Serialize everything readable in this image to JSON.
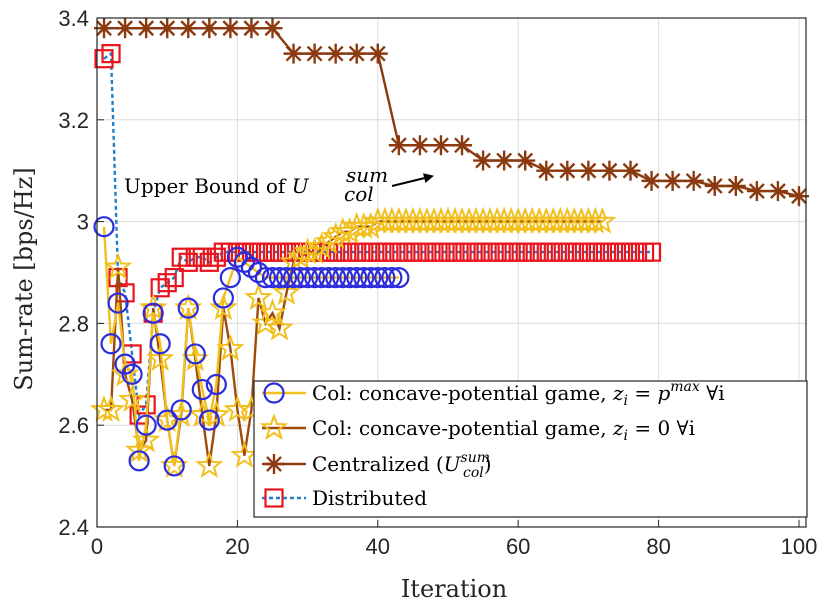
{
  "chart_data": {
    "type": "line",
    "title": "",
    "xlabel": "Iteration",
    "ylabel": "Sum-rate [bps/Hz]",
    "xlim": [
      0,
      101
    ],
    "ylim": [
      2.4,
      3.4
    ],
    "xticks": [
      0,
      20,
      40,
      60,
      80,
      100
    ],
    "yticks": [
      2.4,
      2.6,
      2.8,
      3.0,
      3.2,
      3.4
    ],
    "xtick_labels": [
      "0",
      "20",
      "40",
      "60",
      "80",
      "100"
    ],
    "ytick_labels": [
      "2.4",
      "2.6",
      "2.8",
      "3",
      "3.2",
      "3.4"
    ],
    "grid": true,
    "legend_position": "bottom-right",
    "annotation": {
      "text": "Upper Bound of ",
      "math_base": "U",
      "math_sup": "sum",
      "math_sub": "col",
      "arrow_to": [
        48,
        3.09
      ]
    },
    "series": [
      {
        "name": "Col: concave-potential game, z_i = p_i^max ∀i",
        "legend_parts": {
          "pre": "Col: concave-potential game, ",
          "z": "z",
          "i": "i",
          "eq": " = ",
          "p": "p",
          "sup": "max",
          "post": " ∀i"
        },
        "color": "#2c2cdc",
        "marker": "circle",
        "line_color": "#f2c01e",
        "x": [
          1,
          2,
          3,
          4,
          5,
          6,
          7,
          8,
          9,
          10,
          11,
          12,
          13,
          14,
          15,
          16,
          17,
          18,
          19,
          20,
          21,
          22,
          23,
          24,
          25,
          26,
          27,
          28,
          29,
          30,
          31,
          32,
          33,
          34,
          35,
          36,
          37,
          38,
          39,
          40,
          41,
          42,
          43
        ],
        "y": [
          2.99,
          2.76,
          2.84,
          2.72,
          2.7,
          2.53,
          2.6,
          2.82,
          2.76,
          2.61,
          2.52,
          2.63,
          2.83,
          2.74,
          2.67,
          2.61,
          2.68,
          2.85,
          2.89,
          2.93,
          2.92,
          2.91,
          2.9,
          2.89,
          2.89,
          2.89,
          2.89,
          2.89,
          2.89,
          2.89,
          2.89,
          2.89,
          2.89,
          2.89,
          2.89,
          2.89,
          2.89,
          2.89,
          2.89,
          2.89,
          2.89,
          2.89,
          2.89
        ]
      },
      {
        "name": "Col: concave-potential game, z_i = 0 ∀i",
        "legend_parts": {
          "pre": "Col: concave-potential game, ",
          "z": "z",
          "i": "i",
          "post": " = 0 ∀i"
        },
        "color": "#f2c01e",
        "marker": "star",
        "line_color": "#a04a0a",
        "x": [
          1,
          2,
          3,
          4,
          5,
          6,
          7,
          8,
          9,
          10,
          11,
          12,
          13,
          14,
          15,
          16,
          17,
          18,
          19,
          20,
          21,
          22,
          23,
          24,
          25,
          26,
          27,
          28,
          29,
          30,
          31,
          32,
          33,
          34,
          35,
          36,
          37,
          38,
          39,
          40,
          41,
          42,
          43,
          44,
          45,
          46,
          47,
          48,
          49,
          50,
          51,
          52,
          53,
          54,
          55,
          56,
          57,
          58,
          59,
          60,
          61,
          62,
          63,
          64,
          65,
          66,
          67,
          68,
          69,
          70,
          71,
          72
        ],
        "y": [
          2.63,
          2.63,
          2.91,
          2.7,
          2.65,
          2.55,
          2.57,
          2.83,
          2.73,
          2.61,
          2.52,
          2.62,
          2.83,
          2.73,
          2.62,
          2.52,
          2.62,
          2.83,
          2.75,
          2.63,
          2.54,
          2.63,
          2.85,
          2.8,
          2.82,
          2.79,
          2.86,
          2.92,
          2.93,
          2.94,
          2.94,
          2.95,
          2.96,
          2.97,
          2.98,
          2.98,
          2.99,
          2.99,
          2.99,
          3.0,
          3.0,
          3.0,
          3.0,
          3.0,
          3.0,
          3.0,
          3.0,
          3.0,
          3.0,
          3.0,
          3.0,
          3.0,
          3.0,
          3.0,
          3.0,
          3.0,
          3.0,
          3.0,
          3.0,
          3.0,
          3.0,
          3.0,
          3.0,
          3.0,
          3.0,
          3.0,
          3.0,
          3.0,
          3.0,
          3.0,
          3.0,
          3.0
        ]
      },
      {
        "name": "Centralized (U_col^sum)",
        "legend_parts": {
          "pre": "Centralized (",
          "U": "U",
          "sup": "sum",
          "sub": "col",
          "post": ")"
        },
        "color": "#8b3a0f",
        "marker": "asterisk",
        "line_color": "#8b3a0f",
        "x": [
          1,
          4,
          7,
          10,
          13,
          16,
          19,
          22,
          25,
          28,
          31,
          34,
          37,
          40,
          43,
          46,
          49,
          52,
          55,
          58,
          61,
          64,
          67,
          70,
          73,
          76,
          79,
          82,
          85,
          88,
          91,
          94,
          97,
          100
        ],
        "y": [
          3.38,
          3.38,
          3.38,
          3.38,
          3.38,
          3.38,
          3.38,
          3.38,
          3.38,
          3.33,
          3.33,
          3.33,
          3.33,
          3.33,
          3.15,
          3.15,
          3.15,
          3.15,
          3.12,
          3.12,
          3.12,
          3.1,
          3.1,
          3.1,
          3.1,
          3.1,
          3.08,
          3.08,
          3.08,
          3.07,
          3.07,
          3.06,
          3.06,
          3.05
        ]
      },
      {
        "name": "Distributed",
        "legend_parts": {
          "pre": "Distributed"
        },
        "color": "#e8141e",
        "marker": "square",
        "line_color": "#1f7fc8",
        "line_dash": "4,3",
        "x": [
          1,
          2,
          3,
          4,
          5,
          6,
          7,
          8,
          9,
          10,
          11,
          12,
          13,
          14,
          15,
          16,
          17,
          18,
          19,
          20,
          21,
          22,
          23,
          24,
          25,
          26,
          27,
          28,
          29,
          30,
          31,
          32,
          33,
          34,
          35,
          36,
          37,
          38,
          39,
          40,
          41,
          42,
          43,
          44,
          45,
          46,
          47,
          48,
          49,
          50,
          51,
          52,
          53,
          54,
          55,
          56,
          57,
          58,
          59,
          60,
          61,
          62,
          63,
          64,
          65,
          66,
          67,
          68,
          69,
          70,
          71,
          72,
          73,
          74,
          75,
          76,
          77,
          78,
          79
        ],
        "y": [
          3.32,
          3.33,
          2.89,
          2.86,
          2.74,
          2.62,
          2.64,
          2.82,
          2.87,
          2.88,
          2.89,
          2.93,
          2.92,
          2.93,
          2.93,
          2.92,
          2.93,
          2.94,
          2.94,
          2.94,
          2.94,
          2.94,
          2.94,
          2.94,
          2.94,
          2.94,
          2.94,
          2.94,
          2.94,
          2.94,
          2.94,
          2.94,
          2.94,
          2.94,
          2.94,
          2.94,
          2.94,
          2.94,
          2.94,
          2.94,
          2.94,
          2.94,
          2.94,
          2.94,
          2.94,
          2.94,
          2.94,
          2.94,
          2.94,
          2.94,
          2.94,
          2.94,
          2.94,
          2.94,
          2.94,
          2.94,
          2.94,
          2.94,
          2.94,
          2.94,
          2.94,
          2.94,
          2.94,
          2.94,
          2.94,
          2.94,
          2.94,
          2.94,
          2.94,
          2.94,
          2.94,
          2.94,
          2.94,
          2.94,
          2.94,
          2.94,
          2.94,
          2.94,
          2.94
        ]
      }
    ]
  }
}
